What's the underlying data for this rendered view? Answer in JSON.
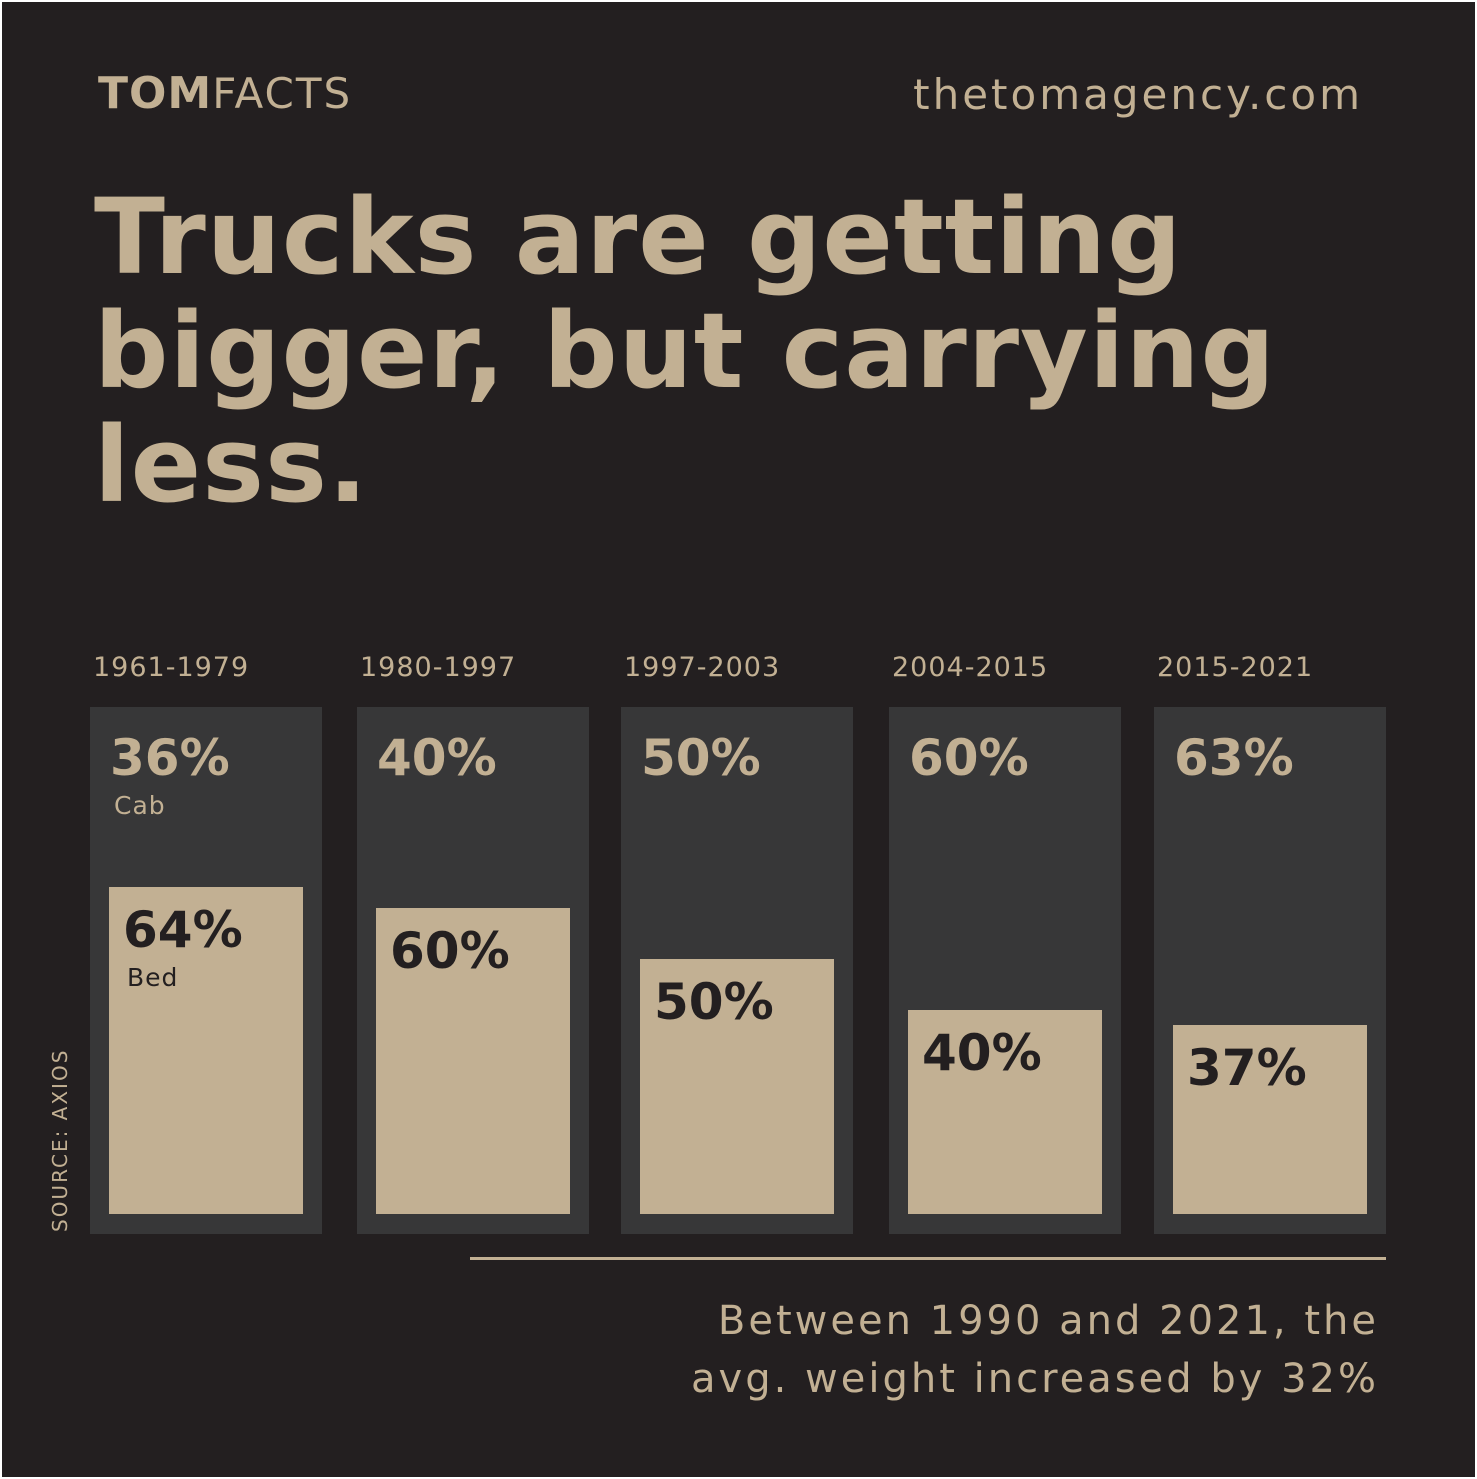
{
  "brand": {
    "strong": "TOM",
    "light": "FACTS"
  },
  "website": "thetomagency.com",
  "headline": "Trucks are getting bigger, but carrying less.",
  "source": "SOURCE: AXIOS",
  "footnote": {
    "line1": "Between 1990 and 2021, the",
    "line2": "avg. weight increased by 32%"
  },
  "colors": {
    "background": "#231f20",
    "accent": "#c2b093",
    "column": "#373738"
  },
  "chart_data": {
    "type": "bar",
    "categories": [
      "1961-1979",
      "1980-1997",
      "1997-2003",
      "2004-2015",
      "2015-2021"
    ],
    "series": [
      {
        "name": "Cab",
        "values": [
          36,
          40,
          50,
          60,
          63
        ],
        "labels": [
          "36%",
          "40%",
          "50%",
          "60%",
          "63%"
        ]
      },
      {
        "name": "Bed",
        "values": [
          64,
          60,
          50,
          40,
          37
        ],
        "labels": [
          "64%",
          "60%",
          "50%",
          "40%",
          "37%"
        ]
      }
    ],
    "stacked": true,
    "ylim": [
      0,
      100
    ],
    "unit": "%"
  }
}
